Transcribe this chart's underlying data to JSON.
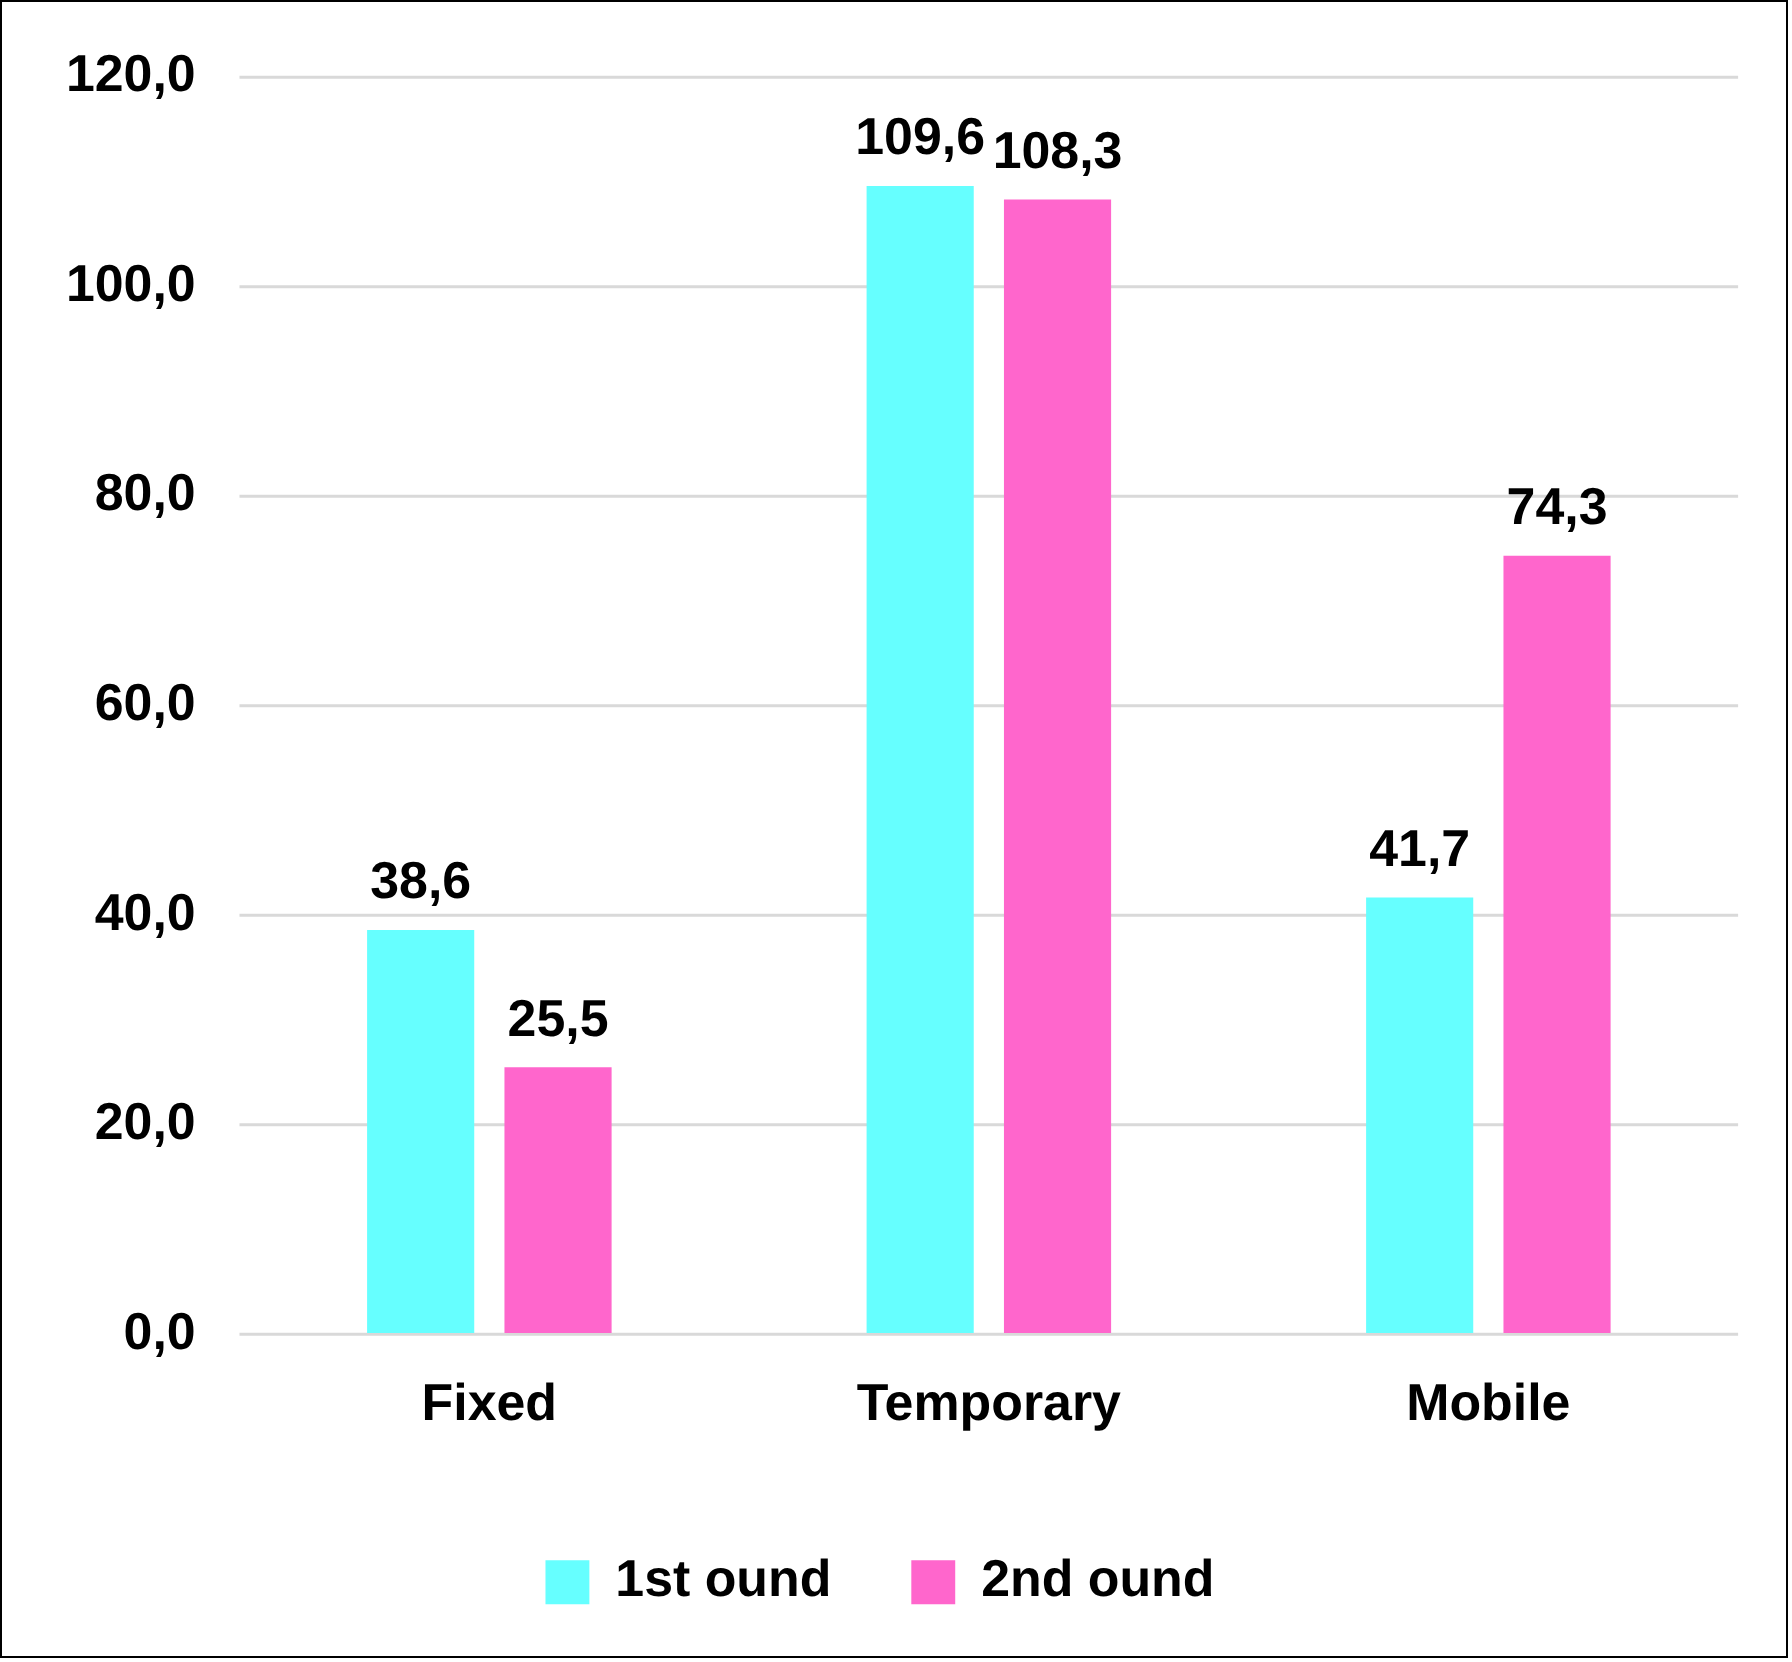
{
  "chart_data": {
    "type": "bar",
    "categories": [
      "Fixed",
      "Temporary",
      "Mobile"
    ],
    "series": [
      {
        "name": "1st ound",
        "color": "#66ffff",
        "values": [
          38.6,
          109.6,
          41.7
        ],
        "value_labels": [
          "38,6",
          "109,6",
          "41,7"
        ]
      },
      {
        "name": "2nd ound",
        "color": "#ff66cc",
        "values": [
          25.5,
          108.3,
          74.3
        ],
        "value_labels": [
          "25,5",
          "108,3",
          "74,3"
        ]
      }
    ],
    "ylim": [
      0,
      120
    ],
    "yticks": [
      {
        "value": 0,
        "label": "0,0"
      },
      {
        "value": 20,
        "label": "20,0"
      },
      {
        "value": 40,
        "label": "40,0"
      },
      {
        "value": 60,
        "label": "60,0"
      },
      {
        "value": 80,
        "label": "80,0"
      },
      {
        "value": 100,
        "label": "100,0"
      },
      {
        "value": 120,
        "label": "120,0"
      }
    ],
    "grid": "y",
    "legend": "bottom"
  }
}
